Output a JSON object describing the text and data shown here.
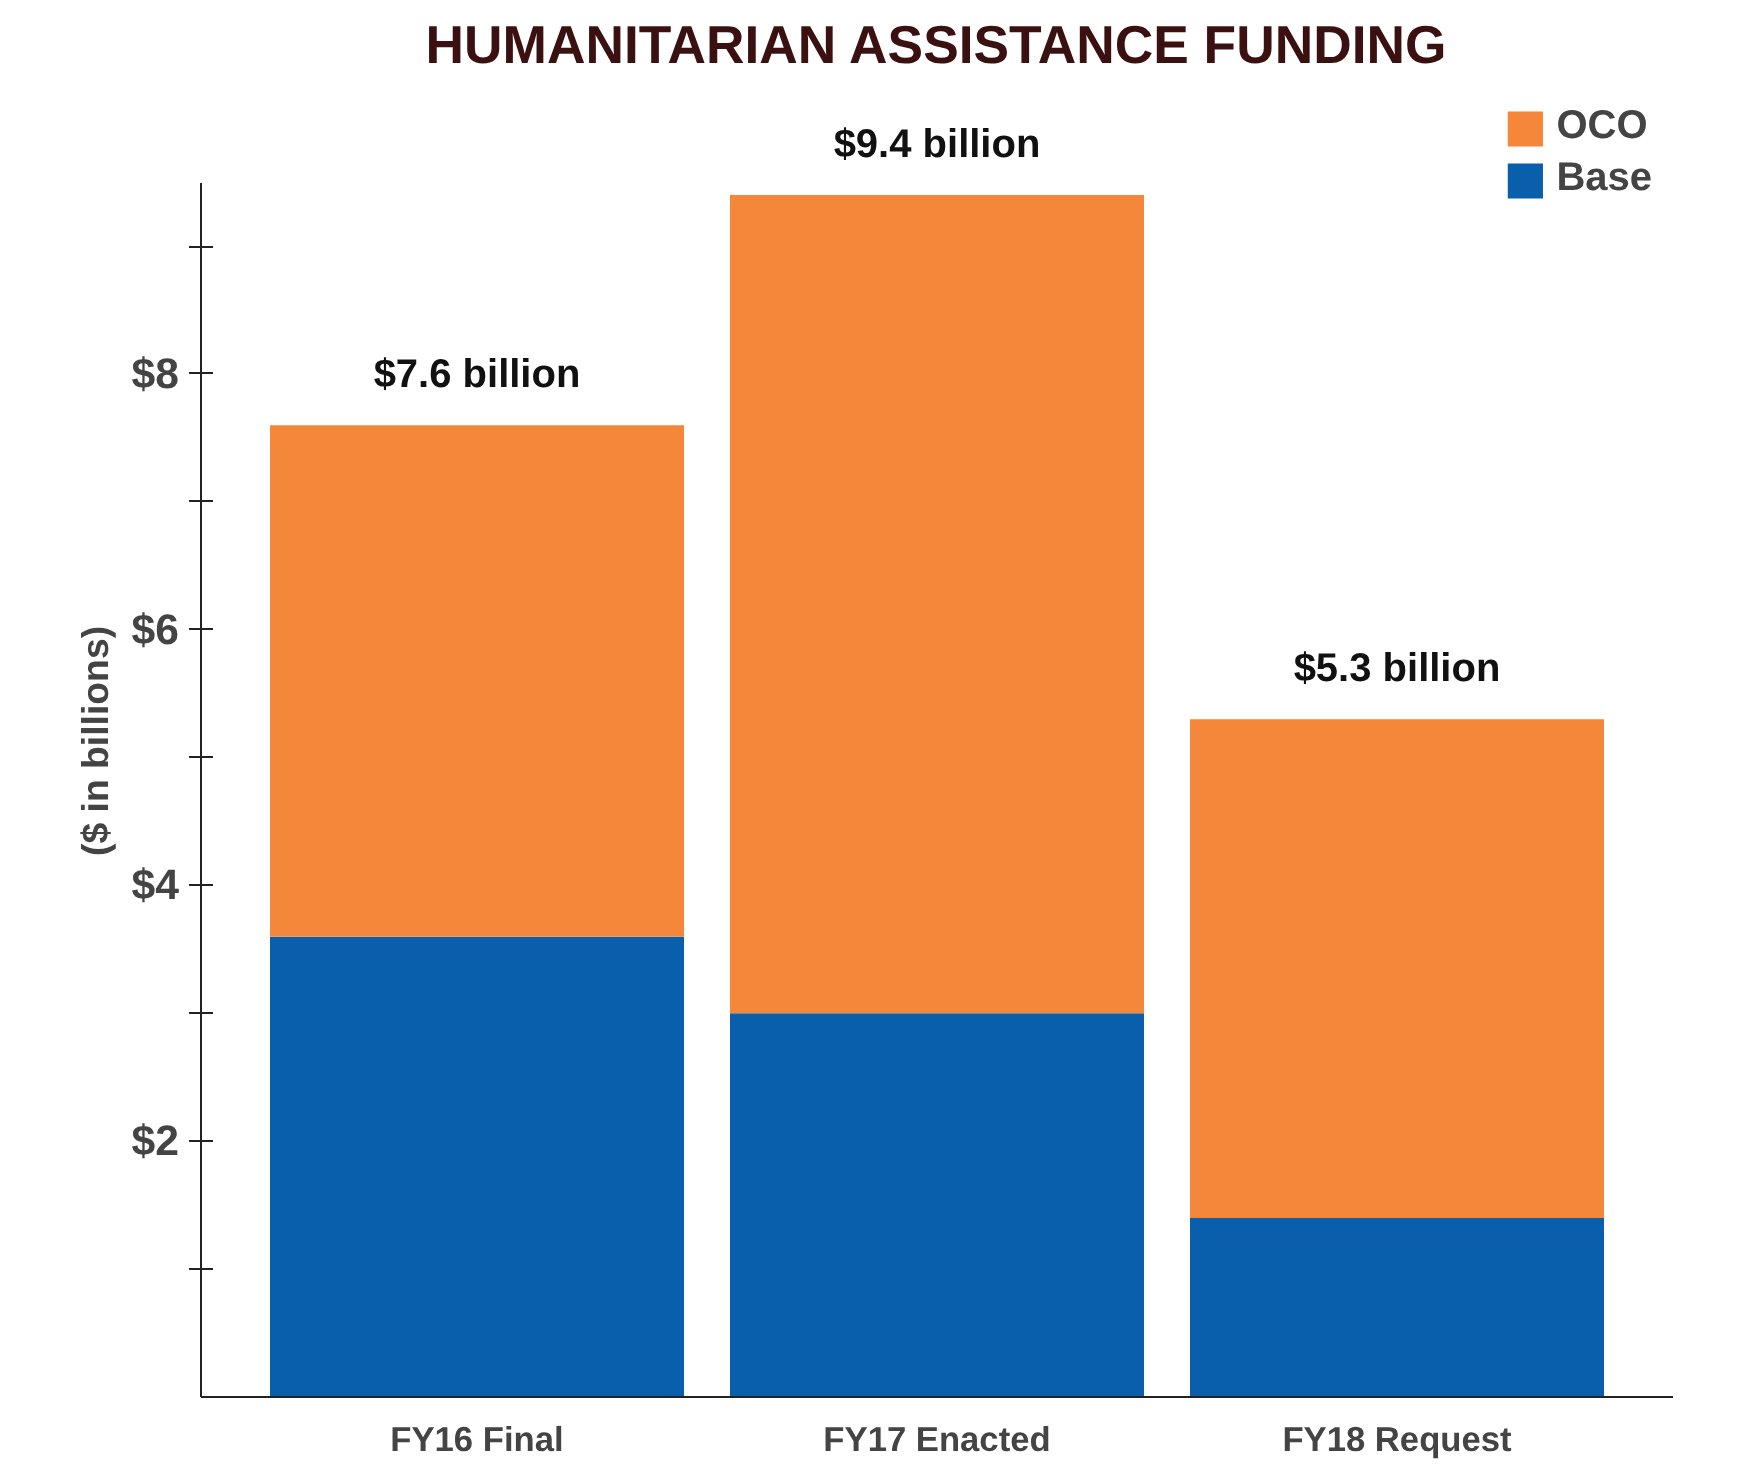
{
  "chart_data": {
    "type": "bar",
    "title": "HUMANITARIAN ASSISTANCE FUNDING",
    "ylabel": "($ in billions)",
    "categories": [
      "FY16 Final",
      "FY17 Enacted",
      "FY18 Request"
    ],
    "stacked": true,
    "series": [
      {
        "name": "Base",
        "color": "#0a5fad",
        "values": [
          3.6,
          3.0,
          1.4
        ]
      },
      {
        "name": "OCO",
        "color": "#f5873a",
        "values": [
          4.0,
          6.4,
          3.9
        ]
      }
    ],
    "totals": [
      "$7.6 billion",
      "$9.4 billion",
      "$5.3 billion"
    ],
    "ylim": [
      0,
      9.5
    ],
    "yticks": [
      {
        "value": 1,
        "label": null
      },
      {
        "value": 2,
        "label": "$2"
      },
      {
        "value": 3,
        "label": null
      },
      {
        "value": 4,
        "label": "$4"
      },
      {
        "value": 5,
        "label": null
      },
      {
        "value": 6,
        "label": "$6"
      },
      {
        "value": 7,
        "label": null
      },
      {
        "value": 8,
        "label": "$8"
      },
      {
        "value": 9,
        "label": null
      }
    ],
    "grid": false,
    "legend": "top right"
  }
}
